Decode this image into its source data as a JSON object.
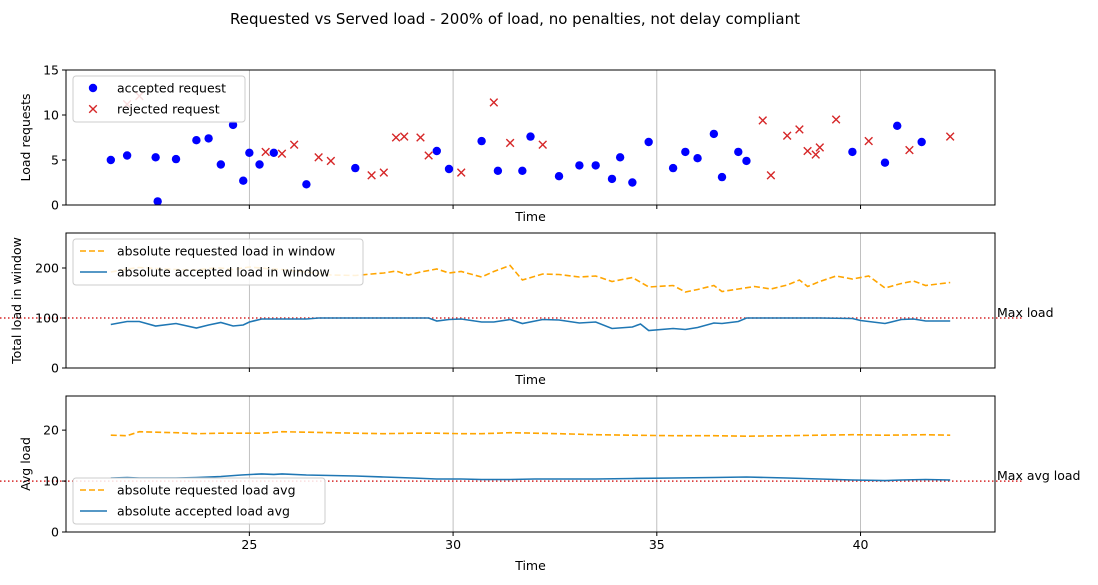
{
  "figure": {
    "title": "Requested vs Served load - 200% of load, no penalties, not delay compliant"
  },
  "chart_data": [
    {
      "type": "scatter",
      "xlabel": "Time",
      "ylabel": "Load requests",
      "xlim": [
        20.5,
        43.3
      ],
      "ylim": [
        0,
        15
      ],
      "xticks": [
        25,
        30,
        35,
        40
      ],
      "xtick_labels_visible": false,
      "yticks": [
        0,
        5,
        10,
        15
      ],
      "grid": "vertical",
      "legend_placement": "upper-left",
      "series": [
        {
          "name": "accepted request",
          "marker": "circle",
          "color": "#0000ff",
          "points": [
            [
              21.6,
              5.0
            ],
            [
              22.0,
              5.5
            ],
            [
              22.7,
              5.3
            ],
            [
              22.75,
              0.4
            ],
            [
              23.2,
              5.1
            ],
            [
              23.7,
              7.2
            ],
            [
              24.0,
              7.4
            ],
            [
              24.3,
              4.5
            ],
            [
              24.6,
              8.9
            ],
            [
              24.85,
              2.7
            ],
            [
              25.0,
              5.8
            ],
            [
              25.25,
              4.5
            ],
            [
              25.6,
              5.8
            ],
            [
              26.4,
              2.3
            ],
            [
              27.6,
              4.1
            ],
            [
              29.6,
              6.0
            ],
            [
              29.9,
              4.0
            ],
            [
              30.7,
              7.1
            ],
            [
              31.1,
              3.8
            ],
            [
              31.9,
              7.6
            ],
            [
              31.7,
              3.8
            ],
            [
              32.6,
              3.2
            ],
            [
              33.1,
              4.4
            ],
            [
              33.5,
              4.4
            ],
            [
              33.9,
              2.9
            ],
            [
              34.1,
              5.3
            ],
            [
              34.4,
              2.5
            ],
            [
              34.8,
              7.0
            ],
            [
              35.4,
              4.1
            ],
            [
              35.7,
              5.9
            ],
            [
              36.0,
              5.2
            ],
            [
              36.4,
              7.9
            ],
            [
              36.6,
              3.1
            ],
            [
              37.0,
              5.9
            ],
            [
              37.2,
              4.9
            ],
            [
              39.8,
              5.9
            ],
            [
              40.6,
              4.7
            ],
            [
              40.9,
              8.8
            ],
            [
              41.5,
              7.0
            ]
          ]
        },
        {
          "name": "rejected request",
          "marker": "x",
          "color": "#d62728",
          "points": [
            [
              22.0,
              11.2
            ],
            [
              22.3,
              12.1
            ],
            [
              25.4,
              5.9
            ],
            [
              25.8,
              5.7
            ],
            [
              26.1,
              6.7
            ],
            [
              26.7,
              5.3
            ],
            [
              27.0,
              4.9
            ],
            [
              28.0,
              3.3
            ],
            [
              28.3,
              3.6
            ],
            [
              28.6,
              7.5
            ],
            [
              28.8,
              7.6
            ],
            [
              29.2,
              7.5
            ],
            [
              29.4,
              5.5
            ],
            [
              30.2,
              3.6
            ],
            [
              31.0,
              11.4
            ],
            [
              31.4,
              6.9
            ],
            [
              32.2,
              6.7
            ],
            [
              37.6,
              9.4
            ],
            [
              37.8,
              3.3
            ],
            [
              38.2,
              7.7
            ],
            [
              38.5,
              8.4
            ],
            [
              38.7,
              6.0
            ],
            [
              38.9,
              5.6
            ],
            [
              39.0,
              6.4
            ],
            [
              39.4,
              9.5
            ],
            [
              40.2,
              7.1
            ],
            [
              41.2,
              6.1
            ],
            [
              42.2,
              7.6
            ]
          ]
        }
      ]
    },
    {
      "type": "line",
      "xlabel": "Time",
      "ylabel": "Total load in window",
      "xlim": [
        20.5,
        43.3
      ],
      "ylim": [
        0,
        270
      ],
      "xticks": [
        25,
        30,
        35,
        40
      ],
      "xtick_labels_visible": false,
      "yticks": [
        0,
        100,
        200
      ],
      "grid": "vertical",
      "legend_placement": "upper-left",
      "reference_line": {
        "y": 100,
        "label": "Max load",
        "color": "#d62728",
        "style": "dotted"
      },
      "series": [
        {
          "name": "absolute requested load in window",
          "color": "#ffa500",
          "style": "dashed",
          "points": [
            [
              21.6,
              192
            ],
            [
              22.0,
              198
            ],
            [
              22.3,
              201
            ],
            [
              22.7,
              199
            ],
            [
              23.2,
              197
            ],
            [
              23.7,
              196
            ],
            [
              24.0,
              199
            ],
            [
              24.3,
              200
            ],
            [
              24.6,
              197
            ],
            [
              25.0,
              202
            ],
            [
              25.4,
              199
            ],
            [
              25.8,
              197
            ],
            [
              26.4,
              192
            ],
            [
              27.0,
              186
            ],
            [
              27.6,
              185
            ],
            [
              28.0,
              188
            ],
            [
              28.3,
              190
            ],
            [
              28.6,
              194
            ],
            [
              28.9,
              186
            ],
            [
              29.2,
              192
            ],
            [
              29.6,
              198
            ],
            [
              29.9,
              190
            ],
            [
              30.2,
              193
            ],
            [
              30.7,
              182
            ],
            [
              31.0,
              193
            ],
            [
              31.4,
              205
            ],
            [
              31.7,
              176
            ],
            [
              32.2,
              188
            ],
            [
              32.6,
              187
            ],
            [
              33.1,
              182
            ],
            [
              33.5,
              184
            ],
            [
              33.9,
              173
            ],
            [
              34.4,
              181
            ],
            [
              34.8,
              162
            ],
            [
              35.4,
              165
            ],
            [
              35.7,
              152
            ],
            [
              36.0,
              157
            ],
            [
              36.4,
              165
            ],
            [
              36.6,
              153
            ],
            [
              37.0,
              158
            ],
            [
              37.4,
              163
            ],
            [
              37.8,
              158
            ],
            [
              38.2,
              166
            ],
            [
              38.5,
              176
            ],
            [
              38.7,
              163
            ],
            [
              39.0,
              173
            ],
            [
              39.4,
              184
            ],
            [
              39.8,
              178
            ],
            [
              40.2,
              184
            ],
            [
              40.6,
              160
            ],
            [
              41.0,
              169
            ],
            [
              41.3,
              174
            ],
            [
              41.6,
              165
            ],
            [
              42.2,
              171
            ]
          ]
        },
        {
          "name": "absolute accepted load in window",
          "color": "#1f77b4",
          "style": "solid",
          "points": [
            [
              21.6,
              87
            ],
            [
              22.0,
              93
            ],
            [
              22.3,
              93
            ],
            [
              22.7,
              84
            ],
            [
              23.2,
              89
            ],
            [
              23.7,
              80
            ],
            [
              24.0,
              86
            ],
            [
              24.3,
              91
            ],
            [
              24.6,
              84
            ],
            [
              24.85,
              86
            ],
            [
              25.0,
              92
            ],
            [
              25.3,
              98
            ],
            [
              25.8,
              98
            ],
            [
              26.4,
              98
            ],
            [
              26.7,
              100
            ],
            [
              27.5,
              100
            ],
            [
              28.5,
              100
            ],
            [
              29.4,
              100
            ],
            [
              29.6,
              94
            ],
            [
              29.9,
              97
            ],
            [
              30.2,
              98
            ],
            [
              30.7,
              92
            ],
            [
              31.0,
              92
            ],
            [
              31.4,
              97
            ],
            [
              31.7,
              89
            ],
            [
              32.2,
              97
            ],
            [
              32.6,
              96
            ],
            [
              33.1,
              90
            ],
            [
              33.5,
              92
            ],
            [
              33.9,
              79
            ],
            [
              34.4,
              82
            ],
            [
              34.6,
              88
            ],
            [
              34.8,
              75
            ],
            [
              35.4,
              79
            ],
            [
              35.7,
              77
            ],
            [
              36.0,
              81
            ],
            [
              36.4,
              90
            ],
            [
              36.6,
              89
            ],
            [
              37.0,
              93
            ],
            [
              37.2,
              100
            ],
            [
              38.0,
              100
            ],
            [
              39.0,
              100
            ],
            [
              39.8,
              99
            ],
            [
              40.0,
              95
            ],
            [
              40.6,
              89
            ],
            [
              41.0,
              97
            ],
            [
              41.3,
              98
            ],
            [
              41.6,
              94
            ],
            [
              42.2,
              94
            ]
          ]
        }
      ]
    },
    {
      "type": "line",
      "xlabel": "Time",
      "ylabel": "Avg load",
      "xlim": [
        20.5,
        43.3
      ],
      "ylim": [
        0,
        26.7
      ],
      "xticks": [
        25,
        30,
        35,
        40
      ],
      "xtick_labels_visible": true,
      "yticks": [
        0,
        10,
        20
      ],
      "grid": "vertical",
      "legend_placement": "lower-left",
      "reference_line": {
        "y": 10,
        "label": "Max avg load",
        "color": "#d62728",
        "style": "dotted"
      },
      "series": [
        {
          "name": "absolute requested load avg",
          "color": "#ffa500",
          "style": "dashed",
          "points": [
            [
              21.6,
              19.0
            ],
            [
              22.0,
              18.9
            ],
            [
              22.3,
              19.7
            ],
            [
              22.7,
              19.6
            ],
            [
              23.2,
              19.5
            ],
            [
              23.7,
              19.3
            ],
            [
              24.3,
              19.4
            ],
            [
              24.8,
              19.4
            ],
            [
              25.3,
              19.4
            ],
            [
              25.8,
              19.7
            ],
            [
              26.4,
              19.6
            ],
            [
              27.0,
              19.5
            ],
            [
              27.6,
              19.4
            ],
            [
              28.3,
              19.3
            ],
            [
              29.0,
              19.4
            ],
            [
              29.6,
              19.4
            ],
            [
              30.2,
              19.3
            ],
            [
              30.7,
              19.3
            ],
            [
              31.4,
              19.5
            ],
            [
              32.0,
              19.4
            ],
            [
              32.6,
              19.3
            ],
            [
              33.5,
              19.1
            ],
            [
              34.4,
              19.0
            ],
            [
              35.4,
              18.9
            ],
            [
              36.4,
              18.9
            ],
            [
              37.2,
              18.8
            ],
            [
              38.2,
              18.9
            ],
            [
              39.0,
              19.0
            ],
            [
              39.8,
              19.1
            ],
            [
              40.6,
              19.0
            ],
            [
              41.6,
              19.1
            ],
            [
              42.2,
              19.0
            ]
          ]
        },
        {
          "name": "absolute accepted load avg",
          "color": "#1f77b4",
          "style": "solid",
          "points": [
            [
              21.6,
              10.6
            ],
            [
              22.0,
              10.7
            ],
            [
              22.3,
              10.6
            ],
            [
              22.7,
              10.6
            ],
            [
              23.2,
              10.6
            ],
            [
              23.7,
              10.7
            ],
            [
              24.3,
              10.9
            ],
            [
              24.8,
              11.2
            ],
            [
              25.3,
              11.4
            ],
            [
              25.6,
              11.3
            ],
            [
              25.8,
              11.4
            ],
            [
              26.4,
              11.2
            ],
            [
              27.0,
              11.1
            ],
            [
              27.6,
              11.0
            ],
            [
              28.3,
              10.8
            ],
            [
              29.0,
              10.6
            ],
            [
              29.6,
              10.4
            ],
            [
              30.2,
              10.4
            ],
            [
              30.7,
              10.3
            ],
            [
              31.4,
              10.3
            ],
            [
              32.0,
              10.4
            ],
            [
              32.6,
              10.4
            ],
            [
              33.5,
              10.4
            ],
            [
              34.4,
              10.5
            ],
            [
              35.4,
              10.6
            ],
            [
              36.4,
              10.7
            ],
            [
              37.2,
              10.8
            ],
            [
              38.2,
              10.6
            ],
            [
              39.0,
              10.4
            ],
            [
              39.8,
              10.2
            ],
            [
              40.6,
              10.1
            ],
            [
              41.0,
              10.2
            ],
            [
              41.6,
              10.3
            ],
            [
              42.2,
              10.2
            ]
          ]
        }
      ]
    }
  ]
}
